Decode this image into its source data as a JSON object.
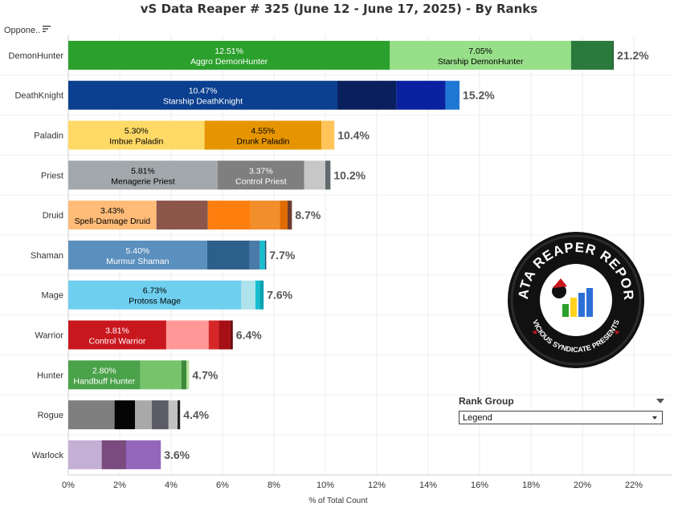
{
  "title": "vS Data Reaper #  325 (June 12 - June 17, 2025) - By Ranks",
  "sort_header": "Oppone..",
  "rank_group": {
    "title": "Rank Group",
    "selected": "Legend"
  },
  "chart_data": {
    "type": "bar",
    "orientation": "horizontal",
    "stacked": true,
    "xlabel": "% of Total Count",
    "xlim": [
      0,
      23.5
    ],
    "xticks": [
      0,
      2,
      4,
      6,
      8,
      10,
      12,
      14,
      16,
      18,
      20,
      22
    ],
    "tick_labels": [
      "0%",
      "2%",
      "4%",
      "6%",
      "8%",
      "10%",
      "12%",
      "14%",
      "16%",
      "18%",
      "20%",
      "22%"
    ],
    "categories": [
      {
        "name": "DemonHunter",
        "total_label": "21.2%",
        "segments": [
          {
            "value": 12.51,
            "label": "12.51%",
            "name": "Aggro DemonHunter",
            "color": "#2ca02c",
            "text_color": "#ffffff"
          },
          {
            "value": 7.05,
            "label": "7.05%",
            "name": "Starship DemonHunter",
            "color": "#98df8a",
            "text_color": "#000000"
          },
          {
            "value": 1.6,
            "color": "#2a7a3b"
          },
          {
            "value": 0.06,
            "color": "#1e5e2a"
          }
        ]
      },
      {
        "name": "DeathKnight",
        "total_label": "15.2%",
        "segments": [
          {
            "value": 10.47,
            "label": "10.47%",
            "name": "Starship DeathKnight",
            "color": "#0b3f8f",
            "text_color": "#ffffff"
          },
          {
            "value": 2.3,
            "color": "#0a1f5e"
          },
          {
            "value": 1.9,
            "color": "#0a22a0"
          },
          {
            "value": 0.55,
            "color": "#1f77d4"
          }
        ]
      },
      {
        "name": "Paladin",
        "total_label": "10.4%",
        "segments": [
          {
            "value": 5.3,
            "label": "5.30%",
            "name": "Imbue Paladin",
            "color": "#ffd966",
            "text_color": "#000000"
          },
          {
            "value": 4.55,
            "label": "4.55%",
            "name": "Drunk Paladin",
            "color": "#e69500",
            "text_color": "#000000"
          },
          {
            "value": 0.5,
            "color": "#ffc45a"
          }
        ]
      },
      {
        "name": "Priest",
        "total_label": "10.2%",
        "segments": [
          {
            "value": 5.81,
            "label": "5.81%",
            "name": "Menagerie Priest",
            "color": "#a2a8ab",
            "text_color": "#000000"
          },
          {
            "value": 3.37,
            "label": "3.37%",
            "name": "Control Priest",
            "color": "#7f7f7f",
            "text_color": "#ffffff"
          },
          {
            "value": 0.82,
            "color": "#c7c7c7"
          },
          {
            "value": 0.2,
            "color": "#5f6b6d"
          }
        ]
      },
      {
        "name": "Druid",
        "total_label": "8.7%",
        "segments": [
          {
            "value": 3.43,
            "label": "3.43%",
            "name": "Spell-Damage Druid",
            "color": "#ffbb78",
            "text_color": "#000000"
          },
          {
            "value": 2.0,
            "color": "#8c564b"
          },
          {
            "value": 1.65,
            "color": "#ff7f0e"
          },
          {
            "value": 1.15,
            "color": "#f28e2b"
          },
          {
            "value": 0.3,
            "color": "#e06c00"
          },
          {
            "value": 0.17,
            "color": "#6b3d2e"
          }
        ]
      },
      {
        "name": "Shaman",
        "total_label": "7.7%",
        "segments": [
          {
            "value": 5.4,
            "label": "5.40%",
            "name": "Murmur Shaman",
            "color": "#5b8fbd",
            "text_color": "#ffffff"
          },
          {
            "value": 1.65,
            "color": "#2c5f8a"
          },
          {
            "value": 0.4,
            "color": "#4a7aa8"
          },
          {
            "value": 0.2,
            "color": "#17becf"
          },
          {
            "value": 0.05,
            "color": "#1f4f73"
          }
        ]
      },
      {
        "name": "Mage",
        "total_label": "7.6%",
        "segments": [
          {
            "value": 6.73,
            "label": "6.73%",
            "name": "Protoss Mage",
            "color": "#6fcfef",
            "text_color": "#000000"
          },
          {
            "value": 0.55,
            "color": "#aee3ec"
          },
          {
            "value": 0.17,
            "color": "#17becf"
          },
          {
            "value": 0.15,
            "color": "#0fa3b1"
          }
        ]
      },
      {
        "name": "Warrior",
        "total_label": "6.4%",
        "segments": [
          {
            "value": 3.81,
            "label": "3.81%",
            "name": "Control Warrior",
            "color": "#c9171e",
            "text_color": "#ffffff"
          },
          {
            "value": 1.65,
            "color": "#ff9896"
          },
          {
            "value": 0.4,
            "color": "#d62728"
          },
          {
            "value": 0.45,
            "color": "#a50f15"
          },
          {
            "value": 0.09,
            "color": "#6b0a10"
          }
        ]
      },
      {
        "name": "Hunter",
        "total_label": "4.7%",
        "segments": [
          {
            "value": 2.8,
            "label": "2.80%",
            "name": "Handbuff Hunter",
            "color": "#4aa24a",
            "text_color": "#ffffff"
          },
          {
            "value": 1.6,
            "color": "#77c36a"
          },
          {
            "value": 0.2,
            "color": "#3a8a3a"
          },
          {
            "value": 0.1,
            "color": "#b5e09b"
          }
        ]
      },
      {
        "name": "Rogue",
        "total_label": "4.4%",
        "segments": [
          {
            "value": 1.8,
            "color": "#7f7f7f"
          },
          {
            "value": 0.8,
            "color": "#050505"
          },
          {
            "value": 0.65,
            "color": "#a9a9a9"
          },
          {
            "value": 0.65,
            "color": "#5c5c66"
          },
          {
            "value": 0.35,
            "color": "#c2c2c2"
          },
          {
            "value": 0.1,
            "color": "#222222"
          }
        ]
      },
      {
        "name": "Warlock",
        "total_label": "3.6%",
        "segments": [
          {
            "value": 1.3,
            "color": "#c5b0d5"
          },
          {
            "value": 0.95,
            "color": "#7b4a7e"
          },
          {
            "value": 1.35,
            "color": "#9467bd"
          }
        ]
      }
    ]
  },
  "logo": {
    "line1": "DATA REAPER REPORT",
    "line2": "VICIOUS SYNDICATE PRESENTS"
  }
}
